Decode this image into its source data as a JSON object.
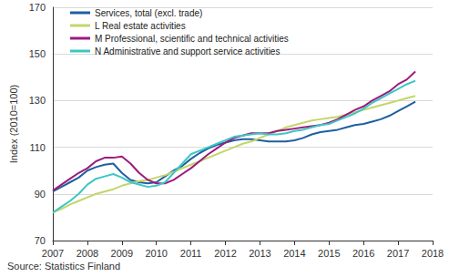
{
  "chart_data": {
    "type": "line",
    "y_label": "Index (2010=100)",
    "source": "Source: Statistics Finland",
    "x": [
      2007,
      2007.25,
      2007.5,
      2007.75,
      2008,
      2008.25,
      2008.5,
      2008.75,
      2009,
      2009.25,
      2009.5,
      2009.75,
      2010,
      2010.25,
      2010.5,
      2010.75,
      2011,
      2011.25,
      2011.5,
      2011.75,
      2012,
      2012.25,
      2012.5,
      2012.75,
      2013,
      2013.25,
      2013.5,
      2013.75,
      2014,
      2014.25,
      2014.5,
      2014.75,
      2015,
      2015.25,
      2015.5,
      2015.75,
      2016,
      2016.25,
      2016.5,
      2016.75,
      2017,
      2017.25,
      2017.5
    ],
    "series": [
      {
        "name": "Services, total (excl. trade)",
        "color": "#1f5f9f",
        "values": [
          91,
          93,
          95,
          97,
          100,
          101.5,
          102.5,
          103,
          99,
          96,
          95,
          94.5,
          95,
          97.5,
          100,
          102,
          105,
          107.5,
          109.5,
          111,
          112,
          113,
          113.5,
          113.5,
          113,
          112.5,
          112.5,
          112.5,
          113,
          114,
          115.5,
          116.5,
          117,
          117.5,
          118.5,
          119.5,
          120,
          121,
          122,
          123.5,
          125.5,
          127.5,
          129.5
        ]
      },
      {
        "name": "L Real estate activities",
        "color": "#c3d66a",
        "values": [
          82,
          83.5,
          85.5,
          87,
          88.5,
          90,
          91,
          92,
          93.5,
          94.5,
          95.5,
          96,
          97,
          98,
          99.5,
          101,
          102.5,
          104,
          105.5,
          107,
          108.5,
          110,
          111.5,
          112.5,
          114,
          115.5,
          117,
          118.5,
          119.5,
          120.5,
          121.5,
          122,
          122.5,
          123,
          124,
          125,
          126,
          127,
          128,
          129,
          130,
          131,
          132
        ]
      },
      {
        "name": "M Professional, scientific and technical activities",
        "color": "#9c1a7d",
        "values": [
          91.5,
          94,
          96.5,
          99,
          101,
          104,
          105.5,
          105.5,
          106,
          103,
          99,
          96,
          94.5,
          94.5,
          96,
          98.5,
          101,
          104,
          107,
          109.5,
          112,
          114,
          115,
          116,
          116,
          116,
          117,
          117.5,
          118,
          118.5,
          119,
          119.5,
          120.5,
          122,
          124,
          126,
          127.5,
          130,
          132,
          134,
          137,
          139,
          142.5
        ]
      },
      {
        "name": "N Administrative and support service activities",
        "color": "#3ec6c6",
        "values": [
          82,
          84.5,
          87,
          90,
          94,
          96.5,
          97.5,
          98.5,
          97,
          95,
          94,
          93,
          93.5,
          95,
          99,
          103,
          107,
          108.5,
          110,
          111.5,
          113,
          114.5,
          115,
          115.5,
          116,
          115.5,
          115.5,
          116,
          117,
          117.5,
          118.5,
          119.5,
          120,
          121.5,
          123,
          124.5,
          126.5,
          129,
          131,
          133,
          135,
          137,
          138.5
        ]
      }
    ],
    "xlim": [
      2007,
      2018
    ],
    "xticks": [
      2007,
      2008,
      2009,
      2010,
      2011,
      2012,
      2013,
      2014,
      2015,
      2016,
      2017,
      2018
    ],
    "ylim": [
      70,
      170
    ],
    "yticks": [
      70,
      90,
      110,
      130,
      150,
      170
    ],
    "grid": true,
    "legend": "upper left"
  }
}
